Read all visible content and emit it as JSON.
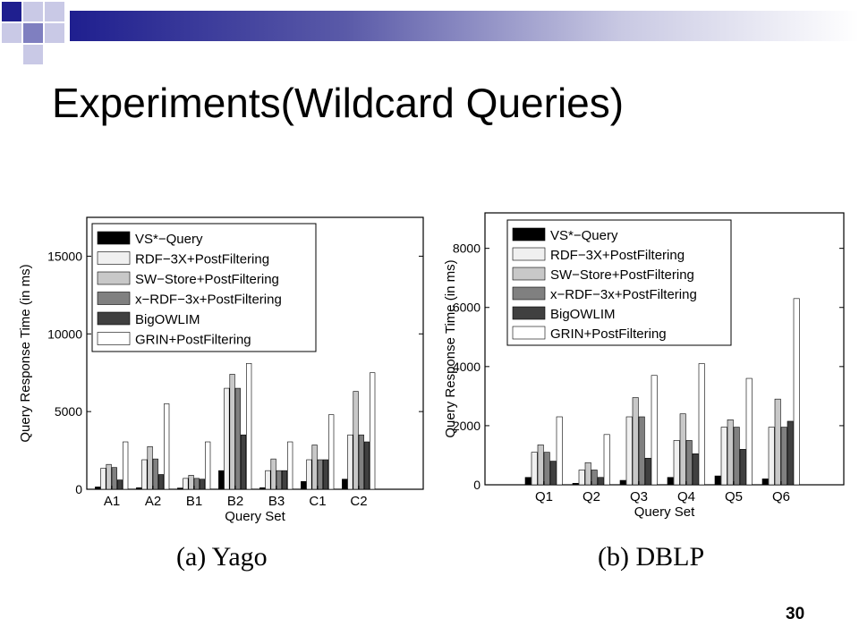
{
  "slide": {
    "title": "Experiments(Wildcard Queries)",
    "page_number": "30",
    "caption_a": "(a)  Yago",
    "caption_b": "(b)  DBLP"
  },
  "colors": {
    "header_bar_dark": "#1f1f8f",
    "header_bar_light": "#ffffff",
    "square_dark": "#1f1f8f",
    "square_mid": "#7f7fc0",
    "square_light": "#c9c9e6"
  },
  "legend_colors": [
    "#000000",
    "#f0f0f0",
    "#c8c8c8",
    "#808080",
    "#404040",
    "#ffffff"
  ],
  "chart_data": [
    {
      "type": "bar",
      "xlabel": "Query Set",
      "ylabel": "Query Response Time (in ms)",
      "ylim": [
        0,
        17500
      ],
      "yticks": [
        0,
        5000,
        10000,
        15000
      ],
      "categories": [
        "A1",
        "A2",
        "B1",
        "B2",
        "B3",
        "C1",
        "C2"
      ],
      "legend_position": "top-left",
      "series": [
        {
          "name": "VS*−Query",
          "values": [
            150,
            100,
            80,
            1200,
            100,
            500,
            650
          ]
        },
        {
          "name": "RDF−3X+PostFiltering",
          "values": [
            1350,
            1900,
            700,
            6500,
            1200,
            1900,
            3500
          ]
        },
        {
          "name": "SW−Store+PostFiltering",
          "values": [
            1600,
            2750,
            900,
            7400,
            1950,
            2850,
            6300
          ]
        },
        {
          "name": "x−RDF−3x+PostFiltering",
          "values": [
            1400,
            1950,
            700,
            6500,
            1200,
            1900,
            3500
          ]
        },
        {
          "name": "BigOWLIM",
          "values": [
            600,
            950,
            650,
            3500,
            1200,
            1900,
            3050
          ]
        },
        {
          "name": "GRIN+PostFiltering",
          "values": [
            3050,
            5500,
            3050,
            8100,
            3050,
            4800,
            7500
          ]
        }
      ]
    },
    {
      "type": "bar",
      "xlabel": "Query Set",
      "ylabel": "Query Response Time (in ms)",
      "ylim": [
        0,
        9200
      ],
      "yticks": [
        0,
        2000,
        4000,
        6000,
        8000
      ],
      "categories": [
        "Q1",
        "Q2",
        "Q3",
        "Q4",
        "Q5",
        "Q6"
      ],
      "legend_position": "top-left",
      "series": [
        {
          "name": "VS*−Query",
          "values": [
            250,
            50,
            150,
            250,
            300,
            200
          ]
        },
        {
          "name": "RDF−3X+PostFiltering",
          "values": [
            1100,
            500,
            2300,
            1500,
            1950,
            1950
          ]
        },
        {
          "name": "SW−Store+PostFiltering",
          "values": [
            1350,
            750,
            2950,
            2400,
            2200,
            2900
          ]
        },
        {
          "name": "x−RDF−3x+PostFiltering",
          "values": [
            1100,
            500,
            2300,
            1500,
            1950,
            1950
          ]
        },
        {
          "name": "BigOWLIM",
          "values": [
            800,
            250,
            900,
            1050,
            1200,
            2150
          ]
        },
        {
          "name": "GRIN+PostFiltering",
          "values": [
            2300,
            1700,
            3700,
            4100,
            3600,
            6300
          ]
        }
      ]
    }
  ]
}
